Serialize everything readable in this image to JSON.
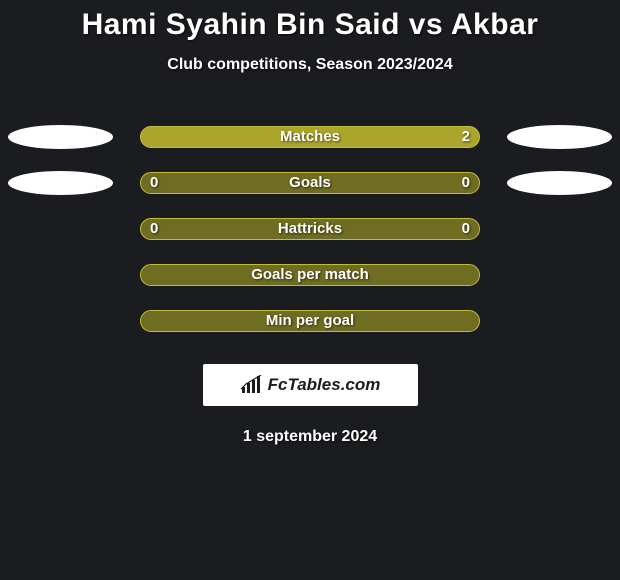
{
  "page_background": "#1b1c1f",
  "text_color": "#ffffff",
  "title": "Hami Syahin Bin Said vs Akbar",
  "title_color": "#ffffff",
  "title_fontsize": 30,
  "subtitle": "Club competitions, Season 2023/2024",
  "subtitle_color": "#ffffff",
  "subtitle_fontsize": 16,
  "ellipse_color": "#ffffff",
  "bar": {
    "empty_fill": "#6f6d21",
    "filled_fill": "#aba52c",
    "border_color": "#c1bb3c",
    "height": 22,
    "radius": 11
  },
  "stats": [
    {
      "label": "Matches",
      "left_value": "",
      "right_value": "2",
      "left_pct": 0,
      "right_pct": 100,
      "show_left_ellipse": true,
      "show_right_ellipse": true
    },
    {
      "label": "Goals",
      "left_value": "0",
      "right_value": "0",
      "left_pct": 0,
      "right_pct": 0,
      "show_left_ellipse": true,
      "show_right_ellipse": true
    },
    {
      "label": "Hattricks",
      "left_value": "0",
      "right_value": "0",
      "left_pct": 0,
      "right_pct": 0,
      "show_left_ellipse": false,
      "show_right_ellipse": false
    },
    {
      "label": "Goals per match",
      "left_value": "",
      "right_value": "",
      "left_pct": 0,
      "right_pct": 0,
      "show_left_ellipse": false,
      "show_right_ellipse": false
    },
    {
      "label": "Min per goal",
      "left_value": "",
      "right_value": "",
      "left_pct": 0,
      "right_pct": 0,
      "show_left_ellipse": false,
      "show_right_ellipse": false
    }
  ],
  "badge": {
    "text": "FcTables.com",
    "background": "#ffffff",
    "text_color": "#1b1c1f",
    "icon_color": "#1b1c1f"
  },
  "date": "1 september 2024"
}
